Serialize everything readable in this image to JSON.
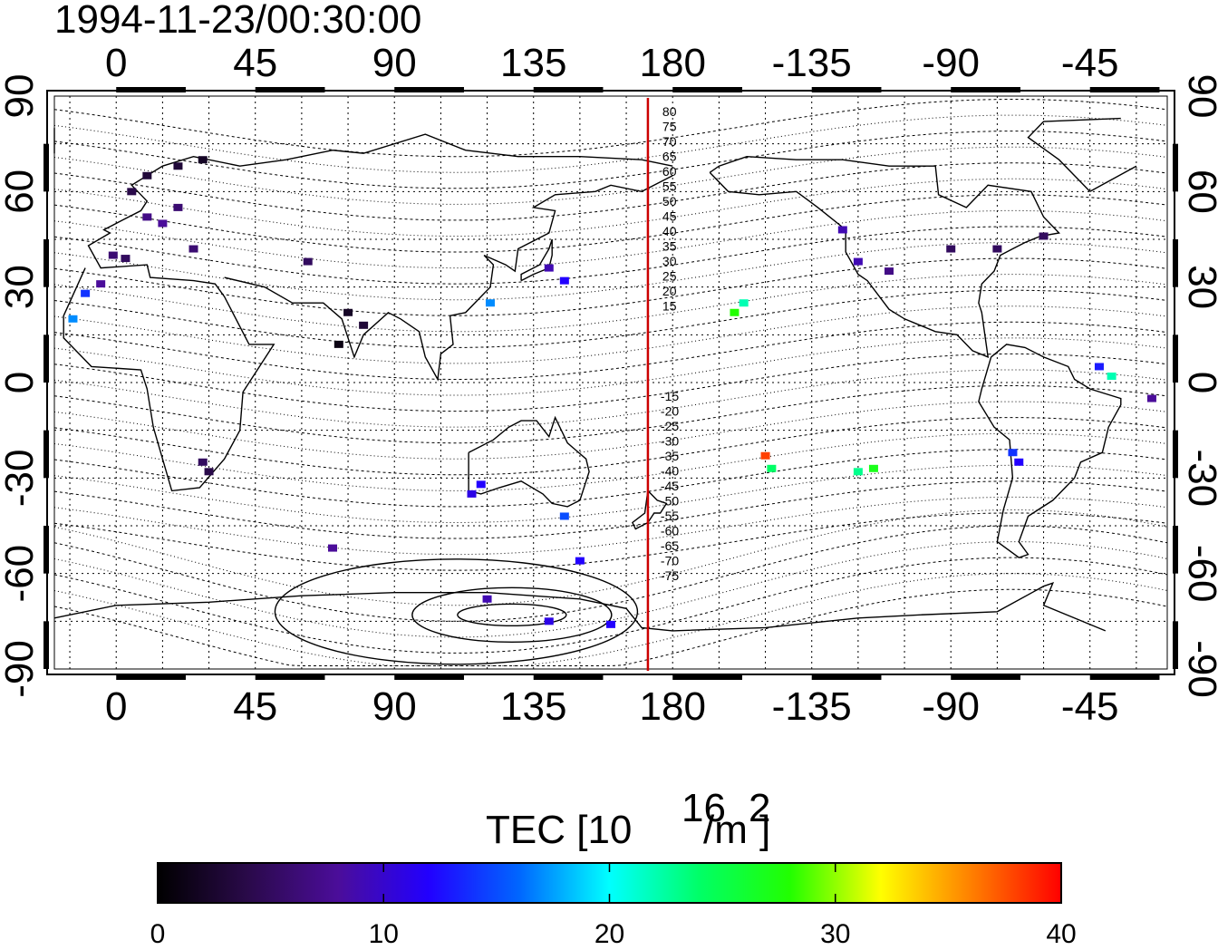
{
  "title": "1994-11-23/00:30:00",
  "top_lon_labels": [
    "0",
    "45",
    "90",
    "135",
    "180",
    "-135",
    "-90",
    "-45"
  ],
  "bottom_lon_labels": [
    "0",
    "45",
    "90",
    "135",
    "180",
    "-135",
    "-90",
    "-45"
  ],
  "left_lat_labels": [
    "90",
    "60",
    "30",
    "0",
    "-30",
    "-60",
    "-90"
  ],
  "right_lat_labels": [
    "90",
    "60",
    "30",
    "0",
    "-30",
    "-60",
    "-90"
  ],
  "magnetic_lat_labels_north": [
    "80",
    "75",
    "70",
    "65",
    "60",
    "55",
    "50",
    "45",
    "40",
    "35",
    "30",
    "25",
    "20",
    "15"
  ],
  "magnetic_lat_labels_south": [
    "-15",
    "-20",
    "-25",
    "-30",
    "-35",
    "-40",
    "-45",
    "-50",
    "-55",
    "-60",
    "-65",
    "-70",
    "-75"
  ],
  "colorbar": {
    "label_main": "TEC  [10",
    "label_sup1": "16",
    "label_mid": "/m",
    "label_sup2": "2",
    "label_end": "]",
    "ticks": [
      "0",
      "10",
      "20",
      "30",
      "40"
    ],
    "range": [
      0,
      40
    ],
    "colors": [
      "#000000",
      "#2a0a4a",
      "#4b0d9a",
      "#2200ff",
      "#0066ff",
      "#00ffff",
      "#00ff66",
      "#22ff00",
      "#ffff00",
      "#ff8000",
      "#ff0000"
    ]
  },
  "colors": {
    "terminator_line": "#cc0000",
    "frame": "#000000"
  },
  "chart_data": {
    "type": "heatmap",
    "title": "1994-11-23/00:30:00",
    "xlabel": "",
    "ylabel": "",
    "xlim": [
      -20,
      340
    ],
    "ylim": [
      -90,
      90
    ],
    "colorbar_range": [
      0,
      40
    ],
    "terminator_longitude": 172,
    "grid": true,
    "points": [
      {
        "lon": -10,
        "lat": 28,
        "tec": 14
      },
      {
        "lon": -5,
        "lat": 31,
        "tec": 8
      },
      {
        "lon": -14,
        "lat": 20,
        "tec": 17
      },
      {
        "lon": -1,
        "lat": 40,
        "tec": 6
      },
      {
        "lon": 3,
        "lat": 39,
        "tec": 5
      },
      {
        "lon": 10,
        "lat": 52,
        "tec": 7
      },
      {
        "lon": 15,
        "lat": 50,
        "tec": 8
      },
      {
        "lon": 20,
        "lat": 55,
        "tec": 6
      },
      {
        "lon": 5,
        "lat": 60,
        "tec": 4
      },
      {
        "lon": 10,
        "lat": 65,
        "tec": 3
      },
      {
        "lon": 20,
        "lat": 68,
        "tec": 3
      },
      {
        "lon": 28,
        "lat": 70,
        "tec": 2
      },
      {
        "lon": 25,
        "lat": 42,
        "tec": 6
      },
      {
        "lon": 62,
        "lat": 38,
        "tec": 5
      },
      {
        "lon": 75,
        "lat": 22,
        "tec": 2
      },
      {
        "lon": 80,
        "lat": 18,
        "tec": 3
      },
      {
        "lon": 72,
        "lat": 12,
        "tec": 1
      },
      {
        "lon": 28,
        "lat": -25,
        "tec": 5
      },
      {
        "lon": 30,
        "lat": -28,
        "tec": 4
      },
      {
        "lon": 140,
        "lat": 36,
        "tec": 9
      },
      {
        "lon": 145,
        "lat": 32,
        "tec": 12
      },
      {
        "lon": 121,
        "lat": 25,
        "tec": 17
      },
      {
        "lon": 118,
        "lat": -32,
        "tec": 12
      },
      {
        "lon": 115,
        "lat": -35,
        "tec": 11
      },
      {
        "lon": 145,
        "lat": -42,
        "tec": 15
      },
      {
        "lon": 150,
        "lat": -56,
        "tec": 12
      },
      {
        "lon": 70,
        "lat": -52,
        "tec": 8
      },
      {
        "lon": 120,
        "lat": -68,
        "tec": 9
      },
      {
        "lon": 140,
        "lat": -75,
        "tec": 11
      },
      {
        "lon": 160,
        "lat": -76,
        "tec": 12
      },
      {
        "lon": 200,
        "lat": 22,
        "tec": 28
      },
      {
        "lon": 203,
        "lat": 25,
        "tec": 22
      },
      {
        "lon": 210,
        "lat": -23,
        "tec": 38
      },
      {
        "lon": 212,
        "lat": -27,
        "tec": 24
      },
      {
        "lon": 240,
        "lat": -28,
        "tec": 23
      },
      {
        "lon": 245,
        "lat": -27,
        "tec": 27
      },
      {
        "lon": 235,
        "lat": 48,
        "tec": 9
      },
      {
        "lon": 240,
        "lat": 38,
        "tec": 9
      },
      {
        "lon": 250,
        "lat": 35,
        "tec": 7
      },
      {
        "lon": 270,
        "lat": 42,
        "tec": 5
      },
      {
        "lon": 285,
        "lat": 42,
        "tec": 5
      },
      {
        "lon": 300,
        "lat": 46,
        "tec": 5
      },
      {
        "lon": 318,
        "lat": 5,
        "tec": 13
      },
      {
        "lon": 322,
        "lat": 2,
        "tec": 22
      },
      {
        "lon": 335,
        "lat": -5,
        "tec": 8
      },
      {
        "lon": 290,
        "lat": -22,
        "tec": 14
      },
      {
        "lon": 292,
        "lat": -25,
        "tec": 12
      }
    ]
  }
}
